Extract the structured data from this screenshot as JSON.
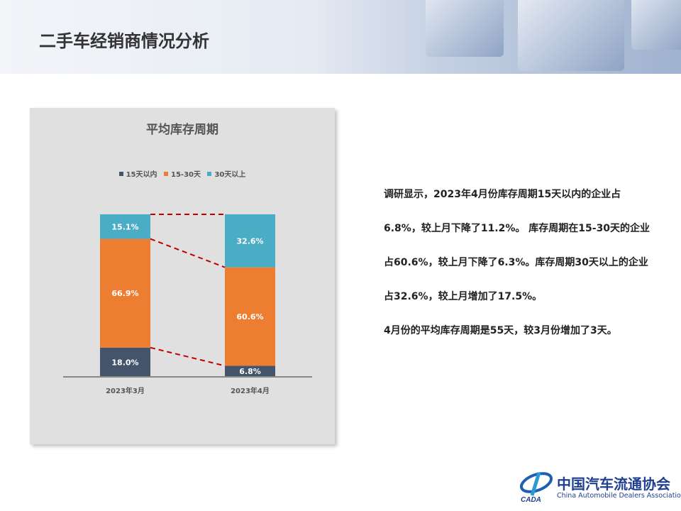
{
  "header": {
    "title": "二手车经销商情况分析"
  },
  "chart_data": {
    "type": "bar",
    "stacked": true,
    "title": "平均库存周期",
    "categories": [
      "2023年3月",
      "2023年4月"
    ],
    "series": [
      {
        "name": "15天以内",
        "color": "#44546a",
        "values": [
          18.0,
          6.8
        ],
        "labels": [
          "18.0%",
          "6.8%"
        ]
      },
      {
        "name": "15-30天",
        "color": "#ed7d31",
        "values": [
          66.9,
          60.6
        ],
        "labels": [
          "66.9%",
          "60.6%"
        ]
      },
      {
        "name": "30天以上",
        "color": "#4bacc6",
        "values": [
          15.1,
          32.6
        ],
        "labels": [
          "15.1%",
          "32.6%"
        ]
      }
    ],
    "ylim": [
      0,
      100
    ],
    "legend": "top",
    "grid": false,
    "connector_color": "#c00000"
  },
  "text": {
    "lines": [
      "调研显示，2023年4月份库存周期15天以内的企业占6.8%，较上月下降了11.2%。 库存周期在15-30天的企业占60.6%，较上月下降了6.3%。库存周期30天以上的企业占32.6%，较上月增加了17.5%。",
      "4月份的平均库存周期是55天，较3月份增加了3天。"
    ]
  },
  "logo": {
    "cn": "中国汽车流通协会",
    "en": "China Automobile Dealers Association",
    "mark": "CADA"
  }
}
